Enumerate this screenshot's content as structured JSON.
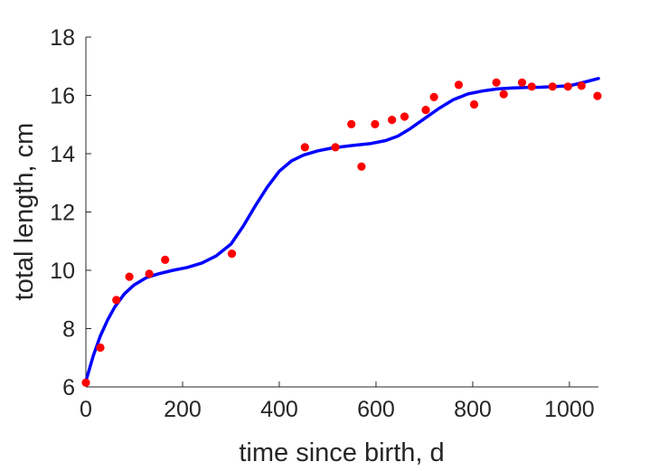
{
  "chart_data": {
    "type": "line",
    "xlabel": "time since birth, d",
    "ylabel": "total length, cm",
    "xlim": [
      0,
      1060
    ],
    "ylim": [
      6,
      18
    ],
    "xticks": [
      0,
      200,
      400,
      600,
      800,
      1000
    ],
    "yticks": [
      6,
      8,
      10,
      12,
      14,
      16,
      18
    ],
    "grid": false,
    "series": [
      {
        "kind": "scatter",
        "color": "#ff0000",
        "points": [
          [
            0,
            6.15
          ],
          [
            30,
            7.35
          ],
          [
            63,
            8.98
          ],
          [
            90,
            9.78
          ],
          [
            131,
            9.88
          ],
          [
            164,
            10.36
          ],
          [
            302,
            10.57
          ],
          [
            453,
            14.22
          ],
          [
            516,
            14.22
          ],
          [
            549,
            15.01
          ],
          [
            570,
            13.56
          ],
          [
            598,
            15.01
          ],
          [
            633,
            15.16
          ],
          [
            659,
            15.27
          ],
          [
            703,
            15.5
          ],
          [
            720,
            15.94
          ],
          [
            771,
            16.36
          ],
          [
            803,
            15.69
          ],
          [
            849,
            16.44
          ],
          [
            864,
            16.04
          ],
          [
            902,
            16.44
          ],
          [
            922,
            16.3
          ],
          [
            965,
            16.3
          ],
          [
            997,
            16.3
          ],
          [
            1025,
            16.33
          ],
          [
            1058,
            15.98
          ]
        ]
      },
      {
        "kind": "line",
        "color": "#0000ff",
        "points": [
          [
            0,
            6.2
          ],
          [
            15,
            7.05
          ],
          [
            30,
            7.75
          ],
          [
            45,
            8.3
          ],
          [
            60,
            8.75
          ],
          [
            80,
            9.2
          ],
          [
            100,
            9.5
          ],
          [
            125,
            9.75
          ],
          [
            150,
            9.88
          ],
          [
            180,
            10.0
          ],
          [
            210,
            10.1
          ],
          [
            240,
            10.25
          ],
          [
            270,
            10.5
          ],
          [
            300,
            10.9
          ],
          [
            325,
            11.5
          ],
          [
            350,
            12.2
          ],
          [
            375,
            12.85
          ],
          [
            400,
            13.4
          ],
          [
            425,
            13.75
          ],
          [
            450,
            13.95
          ],
          [
            480,
            14.1
          ],
          [
            510,
            14.2
          ],
          [
            550,
            14.28
          ],
          [
            590,
            14.35
          ],
          [
            620,
            14.45
          ],
          [
            645,
            14.6
          ],
          [
            670,
            14.85
          ],
          [
            700,
            15.2
          ],
          [
            730,
            15.55
          ],
          [
            760,
            15.85
          ],
          [
            790,
            16.05
          ],
          [
            820,
            16.15
          ],
          [
            850,
            16.22
          ],
          [
            880,
            16.25
          ],
          [
            910,
            16.27
          ],
          [
            940,
            16.28
          ],
          [
            970,
            16.3
          ],
          [
            1000,
            16.33
          ],
          [
            1030,
            16.45
          ],
          [
            1060,
            16.58
          ]
        ]
      }
    ]
  }
}
